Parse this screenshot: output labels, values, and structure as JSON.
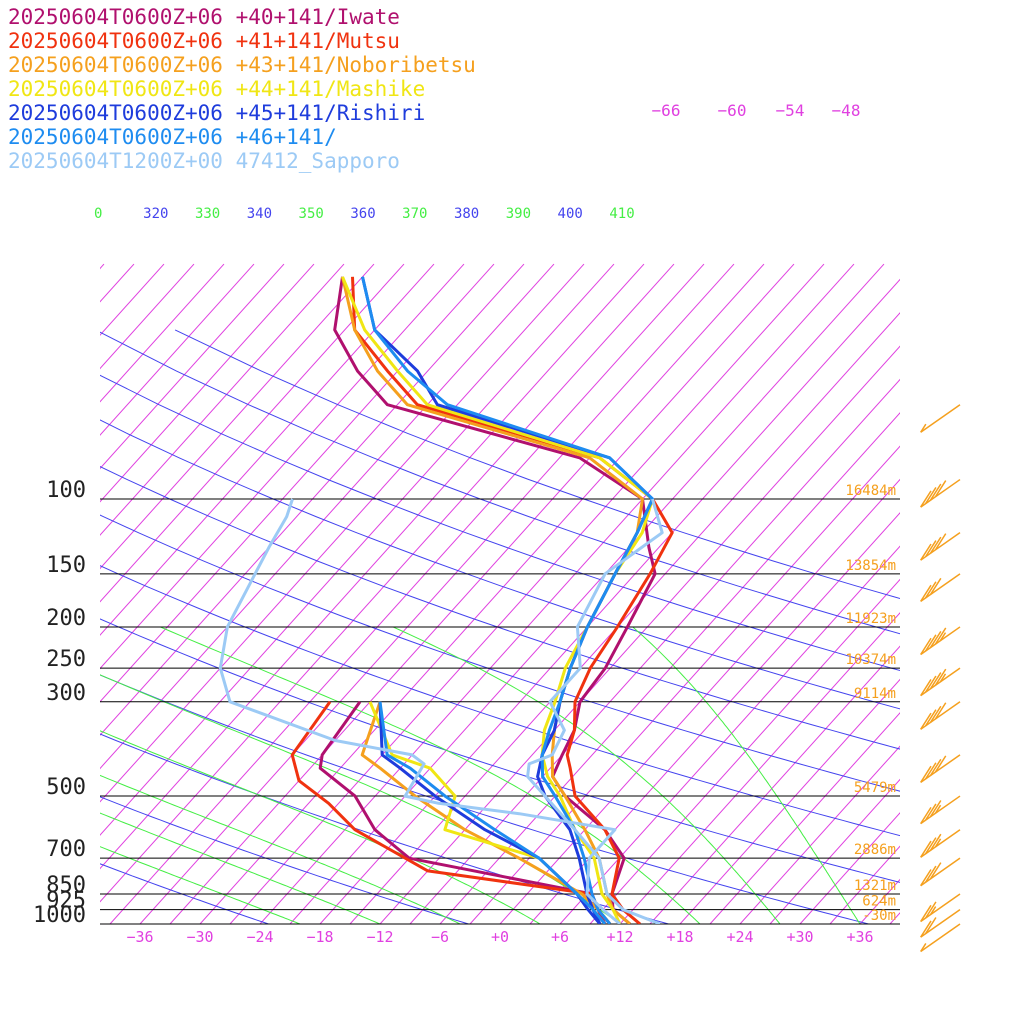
{
  "chart_data": {
    "type": "line",
    "diagram": "skew-T log-P",
    "legend": [
      {
        "text": "20250604T0600Z+06 +40+141/Iwate",
        "color": "#b0106e"
      },
      {
        "text": "20250604T0600Z+06 +41+141/Mutsu",
        "color": "#f0320f"
      },
      {
        "text": "20250604T0600Z+06 +43+141/Noboribetsu",
        "color": "#f5a01e"
      },
      {
        "text": "20250604T0600Z+06 +44+141/Mashike",
        "color": "#f0e614"
      },
      {
        "text": "20250604T0600Z+06 +45+141/Rishiri",
        "color": "#1e3cdc"
      },
      {
        "text": "20250604T0600Z+06 +46+141/",
        "color": "#1e8cf0"
      },
      {
        "text": "20250604T1200Z+00 47412_Sapporo",
        "color": "#9ccaf5"
      }
    ],
    "pressure_levels": [
      {
        "p": 100,
        "label": "100",
        "height": "16484m"
      },
      {
        "p": 150,
        "label": "150",
        "height": "13854m"
      },
      {
        "p": 200,
        "label": "200",
        "height": "11923m"
      },
      {
        "p": 250,
        "label": "250",
        "height": "10374m"
      },
      {
        "p": 300,
        "label": "300",
        "height": "9114m"
      },
      {
        "p": 500,
        "label": "500",
        "height": "5479m"
      },
      {
        "p": 700,
        "label": "700",
        "height": "2886m"
      },
      {
        "p": 850,
        "label": "850",
        "height": "1321m"
      },
      {
        "p": 925,
        "label": "925",
        "height": "624m"
      },
      {
        "p": 1000,
        "label": "1000",
        "height": "-30m"
      }
    ],
    "temperature_axis": {
      "ticks": [
        -36,
        -30,
        -24,
        -18,
        -12,
        -6,
        0,
        6,
        12,
        18,
        24,
        30,
        36
      ],
      "tick_labels": [
        "−36",
        "−30",
        "−24",
        "−18",
        "−12",
        "−6",
        "+0",
        "+6",
        "+12",
        "+18",
        "+24",
        "+30",
        "+36"
      ],
      "range": [
        -40,
        40
      ]
    },
    "upper_temp_labels": [
      "−66",
      "−60",
      "−54",
      "−48"
    ],
    "theta_e_labels": [
      "0",
      "320",
      "330",
      "340",
      "350",
      "360",
      "370",
      "380",
      "390",
      "400",
      "410"
    ],
    "series": [
      {
        "color": "#b0106e",
        "points": [
          [
            1000,
            13
          ],
          [
            925,
            10
          ],
          [
            850,
            8.5
          ],
          [
            700,
            6.5
          ],
          [
            600,
            2
          ],
          [
            500,
            -5
          ],
          [
            450,
            -8
          ],
          [
            400,
            -9
          ],
          [
            350,
            -10
          ],
          [
            300,
            -12
          ],
          [
            250,
            -12.5
          ],
          [
            200,
            -14
          ],
          [
            150,
            -16
          ],
          [
            130,
            -19
          ],
          [
            100,
            -24
          ],
          [
            80,
            -34
          ],
          [
            60,
            -58
          ],
          [
            50,
            -64
          ],
          [
            40,
            -70
          ],
          [
            30,
            -74
          ]
        ]
      },
      {
        "color": "#b0106e",
        "points": [
          [
            1000,
            10.5
          ],
          [
            925,
            8.5
          ],
          [
            850,
            6.5
          ],
          [
            700,
            -15
          ],
          [
            600,
            -21
          ],
          [
            500,
            -26
          ],
          [
            430,
            -32
          ],
          [
            400,
            -33
          ],
          [
            300,
            -34
          ]
        ]
      },
      {
        "color": "#f0320f",
        "points": [
          [
            1000,
            14
          ],
          [
            925,
            11
          ],
          [
            850,
            8.5
          ],
          [
            700,
            6
          ],
          [
            600,
            2
          ],
          [
            500,
            -4
          ],
          [
            430,
            -7
          ],
          [
            400,
            -8.5
          ],
          [
            350,
            -10
          ],
          [
            300,
            -12.5
          ],
          [
            250,
            -14
          ],
          [
            200,
            -15
          ],
          [
            150,
            -16.5
          ],
          [
            120,
            -18
          ],
          [
            100,
            -23
          ],
          [
            80,
            -32
          ],
          [
            60,
            -55
          ],
          [
            50,
            -61
          ],
          [
            40,
            -68
          ],
          [
            30,
            -73
          ]
        ]
      },
      {
        "color": "#f0320f",
        "points": [
          [
            1000,
            11
          ],
          [
            925,
            8.5
          ],
          [
            850,
            6.5
          ],
          [
            750,
            -12
          ],
          [
            600,
            -23
          ],
          [
            520,
            -28
          ],
          [
            460,
            -33
          ],
          [
            400,
            -36
          ],
          [
            300,
            -37
          ]
        ]
      },
      {
        "color": "#f5a01e",
        "points": [
          [
            1000,
            13
          ],
          [
            925,
            10
          ],
          [
            850,
            8
          ],
          [
            700,
            4
          ],
          [
            600,
            0
          ],
          [
            500,
            -5
          ],
          [
            450,
            -8
          ],
          [
            400,
            -10
          ],
          [
            350,
            -12
          ],
          [
            300,
            -14
          ],
          [
            250,
            -16
          ],
          [
            200,
            -18
          ],
          [
            150,
            -20
          ],
          [
            120,
            -21.5
          ],
          [
            100,
            -24
          ],
          [
            80,
            -33
          ],
          [
            60,
            -56
          ],
          [
            50,
            -62
          ],
          [
            40,
            -68
          ],
          [
            30,
            -74
          ]
        ]
      },
      {
        "color": "#f5a01e",
        "points": [
          [
            1000,
            11
          ],
          [
            925,
            8.5
          ],
          [
            850,
            5.5
          ],
          [
            700,
            -4
          ],
          [
            600,
            -12
          ],
          [
            500,
            -20
          ],
          [
            430,
            -26
          ],
          [
            400,
            -29
          ],
          [
            300,
            -32
          ]
        ]
      },
      {
        "color": "#f0e614",
        "points": [
          [
            1000,
            12
          ],
          [
            925,
            10
          ],
          [
            850,
            7.5
          ],
          [
            700,
            3.5
          ],
          [
            600,
            -1
          ],
          [
            500,
            -5.5
          ],
          [
            450,
            -8.5
          ],
          [
            400,
            -11
          ],
          [
            350,
            -13
          ],
          [
            300,
            -14.5
          ],
          [
            250,
            -16.5
          ],
          [
            200,
            -18
          ],
          [
            150,
            -20
          ],
          [
            120,
            -21
          ],
          [
            100,
            -23
          ],
          [
            80,
            -32
          ],
          [
            60,
            -54
          ],
          [
            50,
            -60
          ],
          [
            40,
            -67
          ],
          [
            30,
            -74
          ]
        ]
      },
      {
        "color": "#f0e614",
        "points": [
          [
            1000,
            10.5
          ],
          [
            925,
            8
          ],
          [
            850,
            5
          ],
          [
            700,
            -2
          ],
          [
            600,
            -14
          ],
          [
            500,
            -16
          ],
          [
            430,
            -21
          ],
          [
            400,
            -26
          ],
          [
            300,
            -33
          ]
        ]
      },
      {
        "color": "#1e3cdc",
        "points": [
          [
            1000,
            10
          ],
          [
            925,
            8
          ],
          [
            850,
            6
          ],
          [
            700,
            2
          ],
          [
            600,
            -1.5
          ],
          [
            500,
            -7
          ],
          [
            450,
            -9.5
          ],
          [
            400,
            -11
          ],
          [
            350,
            -12
          ],
          [
            300,
            -14
          ],
          [
            250,
            -16
          ],
          [
            200,
            -18
          ],
          [
            150,
            -20
          ],
          [
            120,
            -21.5
          ],
          [
            100,
            -23
          ],
          [
            80,
            -31
          ],
          [
            60,
            -53
          ],
          [
            50,
            -58
          ],
          [
            40,
            -66
          ],
          [
            30,
            -72
          ]
        ]
      },
      {
        "color": "#1e3cdc",
        "points": [
          [
            1000,
            10
          ],
          [
            925,
            7.5
          ],
          [
            850,
            5
          ],
          [
            700,
            -2
          ],
          [
            600,
            -10
          ],
          [
            500,
            -18
          ],
          [
            430,
            -24
          ],
          [
            400,
            -27
          ],
          [
            300,
            -32
          ]
        ]
      },
      {
        "color": "#1e8cf0",
        "points": [
          [
            1000,
            11
          ],
          [
            925,
            8.5
          ],
          [
            850,
            6.5
          ],
          [
            700,
            2.5
          ],
          [
            600,
            -1
          ],
          [
            500,
            -6
          ],
          [
            450,
            -9
          ],
          [
            400,
            -11
          ],
          [
            350,
            -12.5
          ],
          [
            300,
            -14
          ],
          [
            250,
            -16
          ],
          [
            200,
            -18
          ],
          [
            150,
            -20
          ],
          [
            120,
            -21.5
          ],
          [
            100,
            -23
          ],
          [
            80,
            -31
          ],
          [
            60,
            -52
          ],
          [
            50,
            -59
          ],
          [
            40,
            -66
          ],
          [
            30,
            -72
          ]
        ]
      },
      {
        "color": "#1e8cf0",
        "points": [
          [
            1000,
            10.5
          ],
          [
            925,
            8
          ],
          [
            850,
            5
          ],
          [
            700,
            -2
          ],
          [
            600,
            -9
          ],
          [
            500,
            -17
          ],
          [
            430,
            -23
          ],
          [
            400,
            -26.5
          ],
          [
            300,
            -32
          ]
        ]
      },
      {
        "color": "#9ccaf5",
        "points": [
          [
            1000,
            16
          ],
          [
            925,
            11
          ],
          [
            850,
            8
          ],
          [
            700,
            4
          ],
          [
            600,
            -1
          ],
          [
            500,
            -7
          ],
          [
            450,
            -10.5
          ],
          [
            420,
            -11.5
          ],
          [
            400,
            -10
          ],
          [
            350,
            -11
          ],
          [
            300,
            -15
          ],
          [
            250,
            -15
          ],
          [
            200,
            -19
          ],
          [
            150,
            -21
          ],
          [
            120,
            -19
          ],
          [
            100,
            -23
          ]
        ]
      },
      {
        "color": "#9ccaf5",
        "points": [
          [
            1000,
            12
          ],
          [
            925,
            9
          ],
          [
            850,
            6
          ],
          [
            700,
            3
          ],
          [
            600,
            3
          ],
          [
            550,
            -8
          ],
          [
            520,
            -17
          ],
          [
            500,
            -21
          ],
          [
            420,
            -22
          ],
          [
            400,
            -24
          ],
          [
            370,
            -33
          ],
          [
            300,
            -47
          ],
          [
            250,
            -51
          ],
          [
            200,
            -54
          ],
          [
            150,
            -56
          ],
          [
            130,
            -57
          ],
          [
            110,
            -58
          ],
          [
            100,
            -59
          ]
        ]
      }
    ],
    "wind_barbs": [
      {
        "p": 1000,
        "speed_kt": 5
      },
      {
        "p": 925,
        "speed_kt": 20
      },
      {
        "p": 850,
        "speed_kt": 25
      },
      {
        "p": 700,
        "speed_kt": 30
      },
      {
        "p": 600,
        "speed_kt": 35
      },
      {
        "p": 500,
        "speed_kt": 35
      },
      {
        "p": 400,
        "speed_kt": 40
      },
      {
        "p": 300,
        "speed_kt": 40
      },
      {
        "p": 250,
        "speed_kt": 45
      },
      {
        "p": 200,
        "speed_kt": 45
      },
      {
        "p": 150,
        "speed_kt": 30
      },
      {
        "p": 120,
        "speed_kt": 40
      },
      {
        "p": 90,
        "speed_kt": 40
      },
      {
        "p": 60,
        "speed_kt": 5
      }
    ],
    "colors": {
      "isotherm": "#e040e0",
      "dry_adiabat": "#4444ee",
      "moist_adiabat": "#44ee44",
      "isobar": "#000000",
      "height_label": "#f5a01e",
      "wind_barb": "#f5a01e"
    }
  }
}
